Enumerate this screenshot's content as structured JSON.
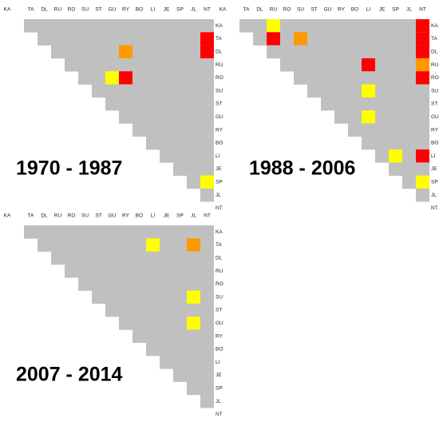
{
  "labels": [
    "KA",
    "TA",
    "DL",
    "RU",
    "RO",
    "SU",
    "ST",
    "GU",
    "RY",
    "BO",
    "LI",
    "JE",
    "SP",
    "JL",
    "NT"
  ],
  "base_color": "#c0c0c0",
  "panels": [
    {
      "title": "1970 - 1987",
      "cells": [
        {
          "row": "TA",
          "col": "NT",
          "color": "#ff0000"
        },
        {
          "row": "DL",
          "col": "NT",
          "color": "#ff0000"
        },
        {
          "row": "DL",
          "col": "RY",
          "color": "#ff9900"
        },
        {
          "row": "RO",
          "col": "GU",
          "color": "#ffff00"
        },
        {
          "row": "RO",
          "col": "RY",
          "color": "#ff0000"
        },
        {
          "row": "SP",
          "col": "NT",
          "color": "#ffff00"
        }
      ]
    },
    {
      "title": "1988 - 2006",
      "cells": [
        {
          "row": "KA",
          "col": "RU",
          "color": "#ffff00"
        },
        {
          "row": "TA",
          "col": "RU",
          "color": "#ff0000"
        },
        {
          "row": "TA",
          "col": "SU",
          "color": "#ff9900"
        },
        {
          "row": "KA",
          "col": "NT",
          "color": "#ff0000"
        },
        {
          "row": "TA",
          "col": "NT",
          "color": "#ff0000"
        },
        {
          "row": "DL",
          "col": "NT",
          "color": "#ff0000"
        },
        {
          "row": "RU",
          "col": "NT",
          "color": "#ff9900"
        },
        {
          "row": "RO",
          "col": "NT",
          "color": "#ff0000"
        },
        {
          "row": "RU",
          "col": "LI",
          "color": "#ff0000"
        },
        {
          "row": "SU",
          "col": "LI",
          "color": "#ffff00"
        },
        {
          "row": "GU",
          "col": "LI",
          "color": "#ffff00"
        },
        {
          "row": "LI",
          "col": "SP",
          "color": "#ffff00"
        },
        {
          "row": "LI",
          "col": "NT",
          "color": "#ff0000"
        },
        {
          "row": "SP",
          "col": "NT",
          "color": "#ffff00"
        }
      ]
    },
    {
      "title": "2007 - 2014",
      "cells": [
        {
          "row": "TA",
          "col": "LI",
          "color": "#ffff00"
        },
        {
          "row": "TA",
          "col": "JL",
          "color": "#ff9900"
        },
        {
          "row": "SU",
          "col": "JL",
          "color": "#ffff00"
        },
        {
          "row": "GU",
          "col": "JL",
          "color": "#ffff00"
        }
      ]
    }
  ]
}
